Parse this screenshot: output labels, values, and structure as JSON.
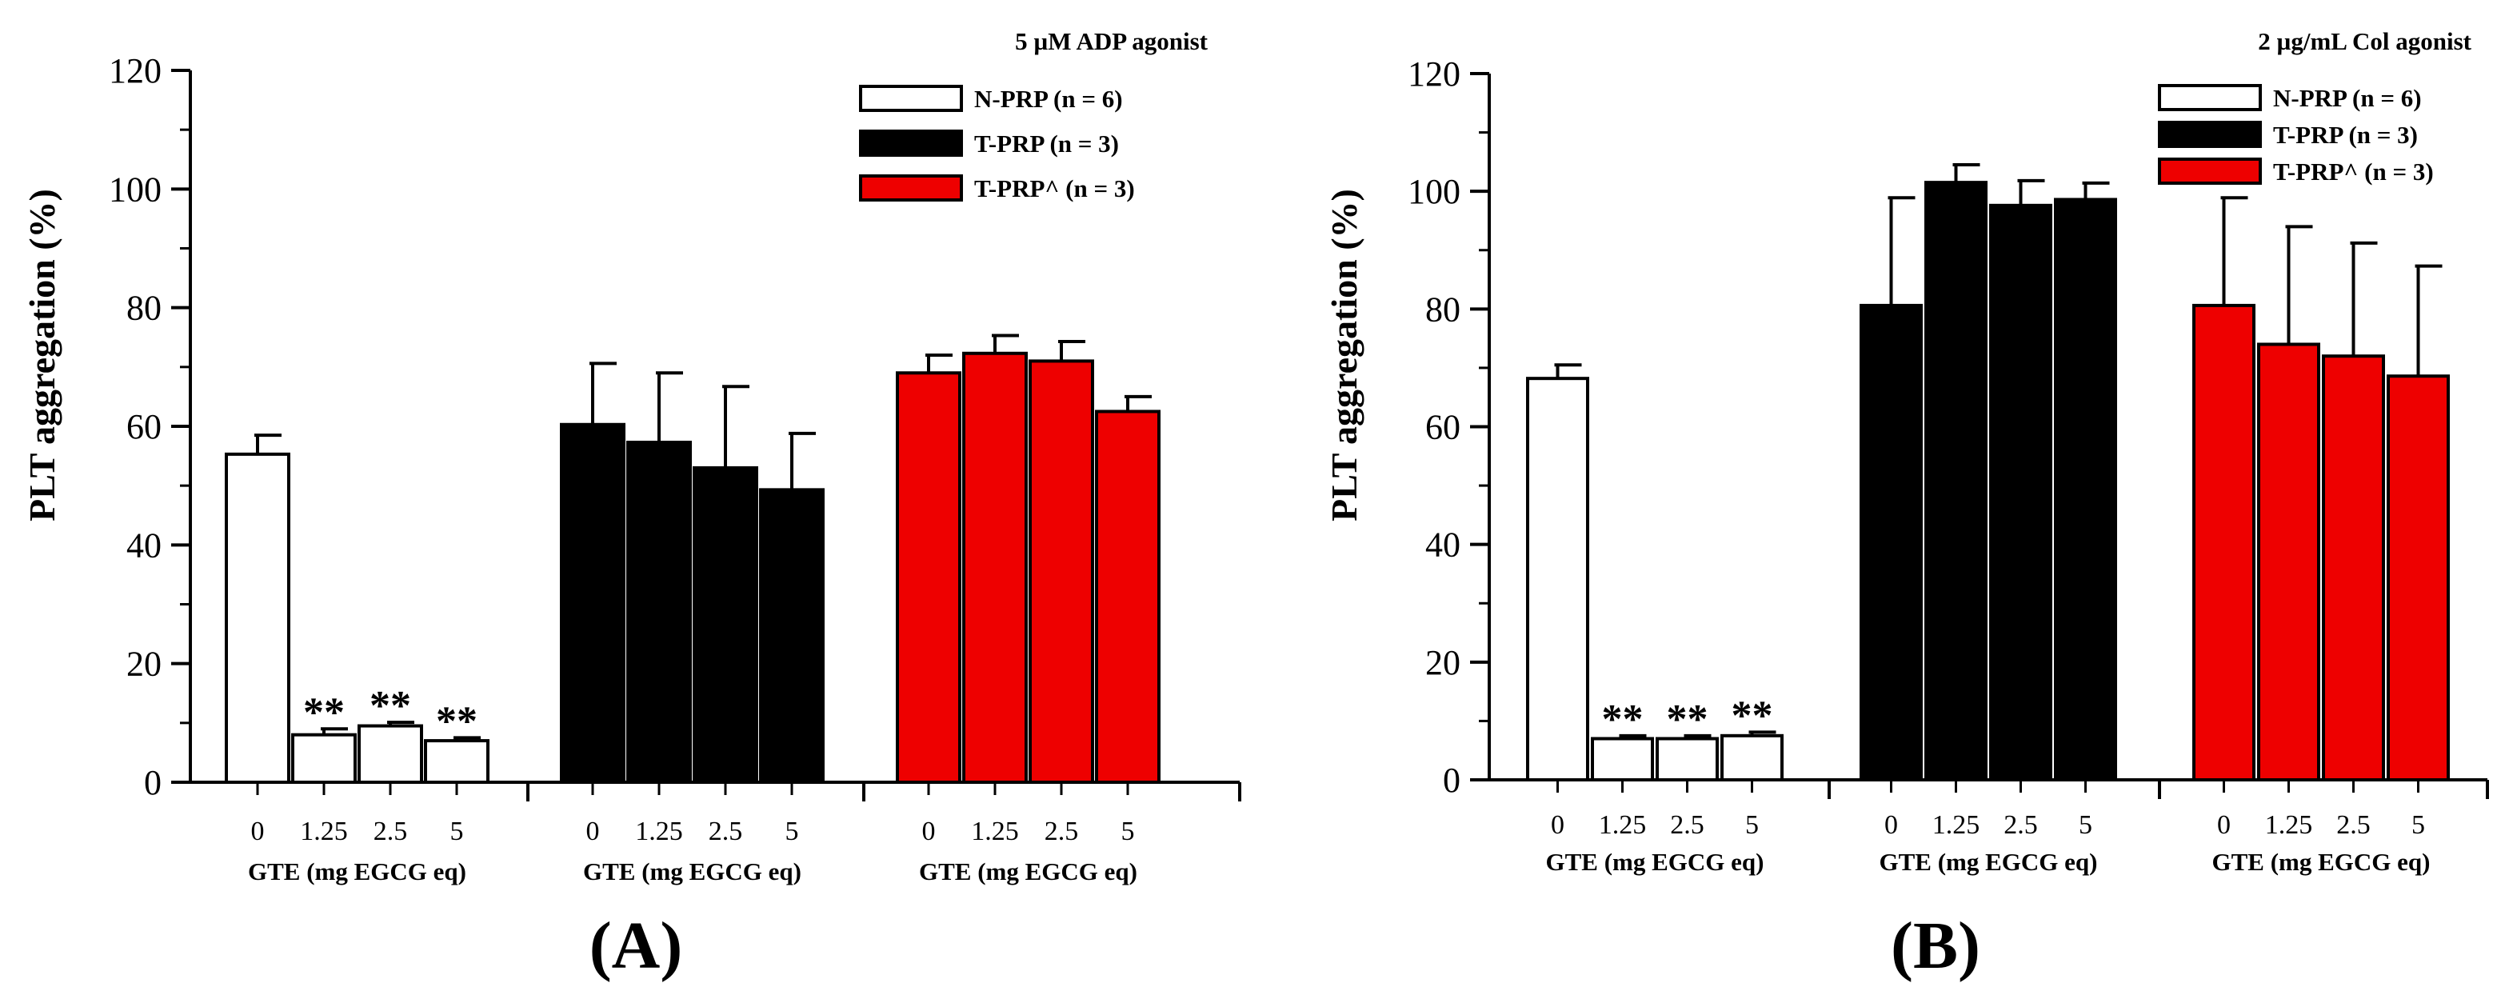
{
  "figure": {
    "panels": [
      {
        "id": "A",
        "label": "(A)",
        "condition": "5 µM ADP agonist"
      },
      {
        "id": "B",
        "label": "(B)",
        "condition": "2 µg/mL Col agonist"
      }
    ]
  },
  "colors": {
    "N-PRP": "#ffffff",
    "T-PRP": "#000000",
    "T-PRP^": "#ee0000",
    "stroke": "#000000"
  },
  "chart_data": [
    {
      "type": "bar",
      "title": "5 µM ADP agonist",
      "ylabel": "PLT aggregation (%)",
      "xlabel": "GTE (mg EGCG eq)",
      "ylim": [
        0,
        120
      ],
      "yticks": [
        "0",
        "20",
        "40",
        "60",
        "80",
        "100",
        "120"
      ],
      "categories": [
        "0",
        "1.25",
        "2.5",
        "5"
      ],
      "legend_position": "top-right",
      "series": [
        {
          "name": "N-PRP (n = 6)",
          "key": "N-PRP",
          "values": [
            55.3,
            8.0,
            9.5,
            7.0
          ],
          "errors": [
            3.2,
            1.0,
            0.6,
            0.5
          ],
          "annotations": [
            "",
            "**",
            "**",
            "**"
          ]
        },
        {
          "name": "T-PRP (n = 3)",
          "key": "T-PRP",
          "values": [
            60.3,
            57.3,
            53.0,
            49.3
          ],
          "errors": [
            10.3,
            11.7,
            13.7,
            9.5
          ],
          "annotations": [
            "",
            "",
            "",
            ""
          ]
        },
        {
          "name": "T-PRP^ (n = 3)",
          "key": "T-PRP^",
          "values": [
            69.0,
            72.3,
            71.0,
            62.5
          ],
          "errors": [
            3.0,
            3.0,
            3.3,
            2.5
          ],
          "annotations": [
            "",
            "",
            "",
            ""
          ]
        }
      ]
    },
    {
      "type": "bar",
      "title": "2 µg/mL Col agonist",
      "ylabel": "PLT aggregation (%)",
      "xlabel": "GTE (mg EGCG eq)",
      "ylim": [
        0,
        120
      ],
      "yticks": [
        "0",
        "20",
        "40",
        "60",
        "80",
        "100",
        "120"
      ],
      "categories": [
        "0",
        "1.25",
        "2.5",
        "5"
      ],
      "legend_position": "top-right",
      "series": [
        {
          "name": "N-PRP (n = 6)",
          "key": "N-PRP",
          "values": [
            68.2,
            7.0,
            7.0,
            7.5
          ],
          "errors": [
            2.3,
            0.5,
            0.5,
            0.6
          ],
          "annotations": [
            "",
            "**",
            "**",
            "**"
          ]
        },
        {
          "name": "T-PRP (n = 3)",
          "key": "T-PRP",
          "values": [
            80.6,
            101.5,
            97.6,
            98.6
          ],
          "errors": [
            18.3,
            3.0,
            4.2,
            2.8
          ],
          "annotations": [
            "",
            "",
            "",
            ""
          ]
        },
        {
          "name": "T-PRP^ (n = 3)",
          "key": "T-PRP^",
          "values": [
            80.6,
            74.0,
            72.0,
            68.6
          ],
          "errors": [
            18.3,
            20.0,
            19.2,
            18.7
          ],
          "annotations": [
            "",
            "",
            "",
            ""
          ]
        }
      ]
    }
  ]
}
